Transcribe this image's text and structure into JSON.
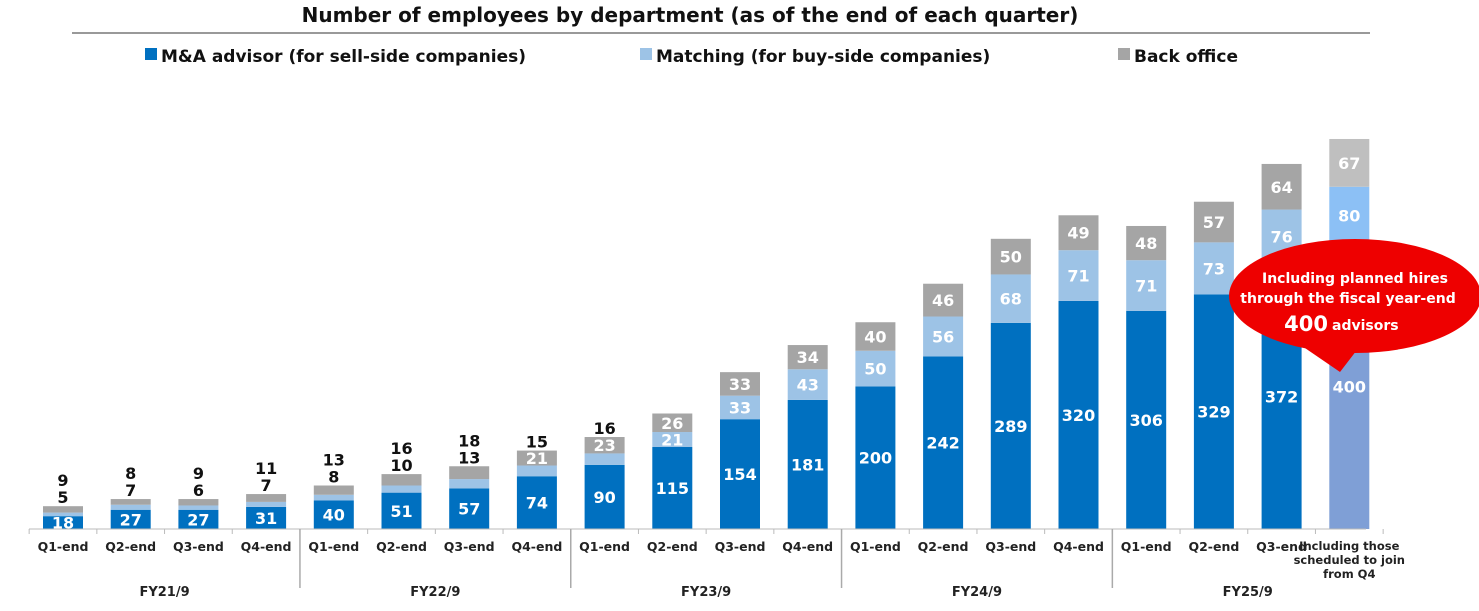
{
  "chart_data": {
    "type": "bar",
    "stacked": true,
    "title": "Number of employees by department (as of the end of each quarter)",
    "xlabel": "",
    "ylabel": "",
    "ylim": [
      0,
      560
    ],
    "legend_position": "top",
    "categories": [
      "Q1-end",
      "Q2-end",
      "Q3-end",
      "Q4-end",
      "Q1-end",
      "Q2-end",
      "Q3-end",
      "Q4-end",
      "Q1-end",
      "Q2-end",
      "Q3-end",
      "Q4-end",
      "Q1-end",
      "Q2-end",
      "Q3-end",
      "Q4-end",
      "Q1-end",
      "Q2-end",
      "Q3-end",
      "Including those scheduled to join from Q4"
    ],
    "groups": [
      {
        "label": "FY21/9",
        "count": 4
      },
      {
        "label": "FY22/9",
        "count": 4
      },
      {
        "label": "FY23/9",
        "count": 4
      },
      {
        "label": "FY24/9",
        "count": 4
      },
      {
        "label": "FY25/9",
        "count": 4
      }
    ],
    "series": [
      {
        "name": "M&A advisor (for sell-side companies)",
        "color": "#0070C0",
        "projected_color": "#7F9FD6",
        "values": [
          18,
          27,
          27,
          31,
          40,
          51,
          57,
          74,
          90,
          115,
          154,
          181,
          200,
          242,
          289,
          320,
          306,
          329,
          372,
          400
        ]
      },
      {
        "name": "Matching (for buy-side companies)",
        "color": "#9DC3E6",
        "projected_color": "#8CC0F5",
        "values": [
          5,
          7,
          6,
          7,
          8,
          10,
          13,
          15,
          16,
          21,
          33,
          43,
          50,
          56,
          68,
          71,
          71,
          73,
          76,
          80
        ]
      },
      {
        "name": "Back office",
        "color": "#A5A5A5",
        "projected_color": "#BFBFBF",
        "values": [
          9,
          8,
          9,
          11,
          13,
          16,
          18,
          21,
          23,
          26,
          33,
          34,
          40,
          46,
          50,
          49,
          48,
          57,
          64,
          67
        ]
      }
    ],
    "annotation": {
      "line1": "Including planned hires",
      "line2": "through the fiscal year-end",
      "number": "400",
      "unit": "advisors",
      "color": "#EE0000"
    }
  }
}
